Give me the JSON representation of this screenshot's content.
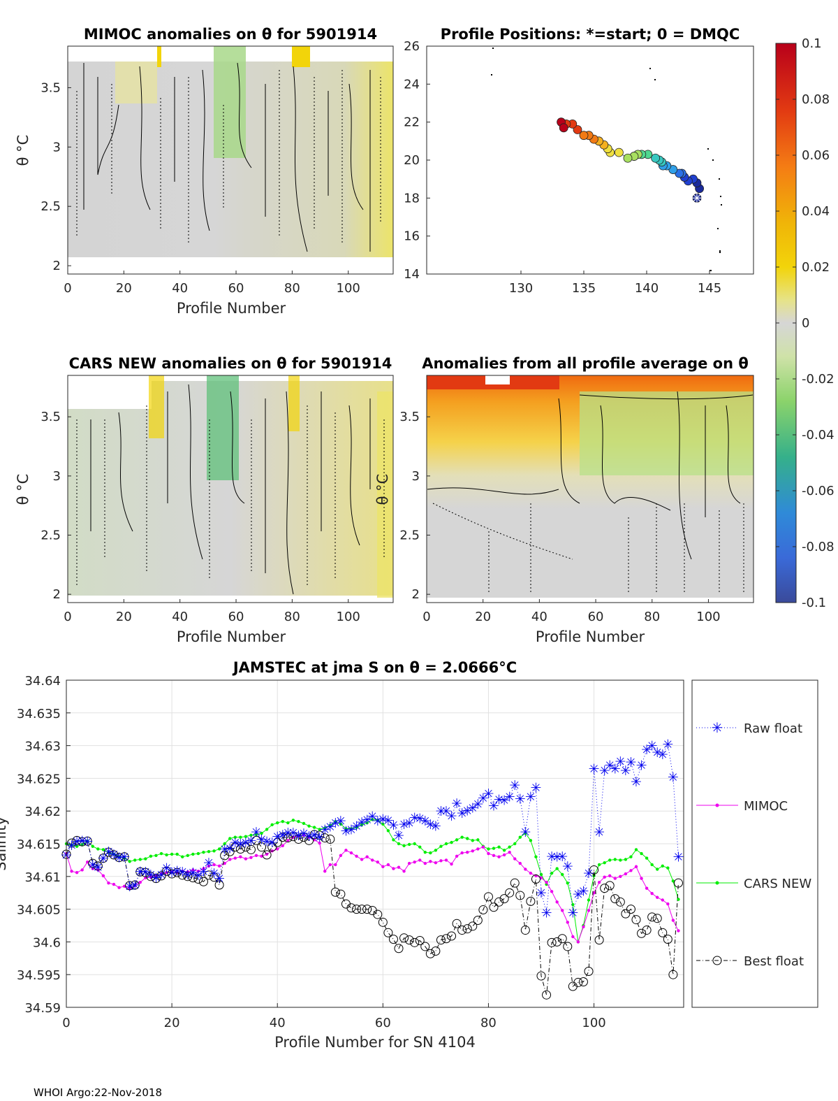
{
  "footer": "WHOI Argo:22-Nov-2018",
  "colorbar": {
    "ticks": [
      "0.1",
      "0.08",
      "0.06",
      "0.04",
      "0.02",
      "0",
      "-0.02",
      "-0.04",
      "-0.06",
      "-0.08",
      "-0.1"
    ],
    "colors": {
      "top": "#b8001a",
      "orange": "#f47c14",
      "yellow": "#f2d40a",
      "gray": "#d6d6d6",
      "green": "#8bd36b",
      "teal": "#35b08a",
      "blue": "#3a6ad8",
      "bottom": "#3a4a9a"
    }
  },
  "chart_data": [
    {
      "type": "heatmap",
      "title": "MIMOC anomalies on θ  for 5901914",
      "xlabel": "Profile Number",
      "ylabel": "θ °C",
      "xlim": [
        0,
        116
      ],
      "ylim": [
        1.93,
        3.85
      ],
      "xticks": [
        "0",
        "20",
        "40",
        "60",
        "80",
        "100"
      ],
      "yticks": [
        "2",
        "2.5",
        "3",
        "3.5"
      ]
    },
    {
      "type": "scatter",
      "title": "Profile Positions: *=start; 0 = DMQC",
      "xlim": [
        122.5,
        148.5
      ],
      "ylim": [
        14,
        26
      ],
      "xticks": [
        "130",
        "135",
        "140",
        "145"
      ],
      "yticks": [
        "14",
        "16",
        "18",
        "20",
        "22",
        "24",
        "26"
      ],
      "track": [
        [
          144,
          18
        ],
        [
          144.2,
          18.5
        ],
        [
          144,
          18.8
        ],
        [
          143.7,
          19
        ],
        [
          143.3,
          18.9
        ],
        [
          143,
          19.1
        ],
        [
          142.8,
          19.3
        ],
        [
          142.6,
          19.3
        ],
        [
          142.1,
          19.5
        ],
        [
          141.6,
          19.7
        ],
        [
          141.3,
          19.7
        ],
        [
          141.2,
          19.9
        ],
        [
          141,
          20
        ],
        [
          140.7,
          20.1
        ],
        [
          140.1,
          20.3
        ],
        [
          139.6,
          20.3
        ],
        [
          139.3,
          20.3
        ],
        [
          139,
          20.2
        ],
        [
          138.5,
          20.1
        ],
        [
          137.8,
          20.4
        ],
        [
          137.1,
          20.4
        ],
        [
          136.9,
          20.6
        ],
        [
          136.6,
          20.8
        ],
        [
          136.2,
          21
        ],
        [
          135.8,
          21.1
        ],
        [
          135.4,
          21.3
        ],
        [
          135,
          21.3
        ],
        [
          134.5,
          21.6
        ],
        [
          134.1,
          21.9
        ],
        [
          133.6,
          21.9
        ],
        [
          133.2,
          22.0
        ],
        [
          133.4,
          21.7
        ]
      ]
    },
    {
      "type": "heatmap",
      "title": "CARS NEW anomalies on θ for 5901914",
      "xlabel": "Profile Number",
      "ylabel": "θ °C",
      "xlim": [
        0,
        116
      ],
      "ylim": [
        1.93,
        3.85
      ],
      "xticks": [
        "0",
        "20",
        "40",
        "60",
        "80",
        "100"
      ],
      "yticks": [
        "2",
        "2.5",
        "3",
        "3.5"
      ]
    },
    {
      "type": "heatmap",
      "title": "Anomalies from all profile average on θ",
      "xlabel": "Profile Number",
      "ylabel": "θ °C",
      "xlim": [
        0,
        116
      ],
      "ylim": [
        1.93,
        3.85
      ],
      "xticks": [
        "0",
        "20",
        "40",
        "60",
        "80",
        "100"
      ],
      "yticks": [
        "2",
        "2.5",
        "3",
        "3.5"
      ]
    },
    {
      "type": "line",
      "title": "JAMSTEC at jma S on θ = 2.0666°C",
      "xlabel": "Profile Number for SN 4104",
      "ylabel": "Salinity",
      "xlim": [
        0,
        117
      ],
      "ylim": [
        34.59,
        34.64
      ],
      "xticks": [
        "0",
        "20",
        "40",
        "60",
        "80",
        "100"
      ],
      "yticks": [
        "34.59",
        "34.595",
        "34.6",
        "34.605",
        "34.61",
        "34.615",
        "34.62",
        "34.625",
        "34.63",
        "34.635",
        "34.64"
      ],
      "x": [
        0,
        1,
        2,
        3,
        4,
        5,
        6,
        7,
        8,
        9,
        10,
        11,
        12,
        13,
        14,
        15,
        16,
        17,
        18,
        19,
        20,
        21,
        22,
        23,
        24,
        25,
        26,
        27,
        28,
        29,
        30,
        31,
        32,
        33,
        34,
        35,
        36,
        37,
        38,
        39,
        40,
        41,
        42,
        43,
        44,
        45,
        46,
        47,
        48,
        49,
        50,
        51,
        52,
        53,
        54,
        55,
        56,
        57,
        58,
        59,
        60,
        61,
        62,
        63,
        64,
        65,
        66,
        67,
        68,
        69,
        70,
        71,
        72,
        73,
        74,
        75,
        76,
        77,
        78,
        79,
        80,
        81,
        82,
        83,
        84,
        85,
        86,
        87,
        88,
        89,
        90,
        91,
        92,
        93,
        94,
        95,
        96,
        97,
        98,
        99,
        100,
        101,
        102,
        103,
        104,
        105,
        106,
        107,
        108,
        109,
        110,
        111,
        112,
        113,
        114,
        115,
        116
      ],
      "series": [
        {
          "name": "Raw float",
          "values": [
            34.6133,
            34.6148,
            34.6154,
            34.6155,
            34.6154,
            34.6118,
            34.6114,
            34.6128,
            34.6138,
            34.6134,
            34.6129,
            34.613,
            34.6085,
            34.6087,
            34.6108,
            34.6107,
            34.6103,
            34.6098,
            34.6103,
            34.6113,
            34.6106,
            34.6109,
            34.6107,
            34.6103,
            34.6106,
            34.6102,
            34.6108,
            34.6121,
            34.6105,
            34.6097,
            34.6142,
            34.6143,
            34.6152,
            34.615,
            34.6152,
            34.6155,
            34.6168,
            34.6157,
            34.6154,
            34.6152,
            34.6161,
            34.6164,
            34.6167,
            34.6167,
            34.6163,
            34.6166,
            34.6162,
            34.6164,
            34.616,
            34.6172,
            34.6176,
            34.6182,
            34.6185,
            34.617,
            34.6172,
            34.6177,
            34.6183,
            34.6187,
            34.6192,
            34.6185,
            34.6188,
            34.6186,
            34.6179,
            34.6163,
            34.618,
            34.6182,
            34.619,
            34.6189,
            34.6185,
            34.618,
            34.6177,
            34.62,
            34.62,
            34.6193,
            34.6212,
            34.6197,
            34.6201,
            34.6205,
            34.6211,
            34.622,
            34.6227,
            34.6208,
            34.6218,
            34.6217,
            34.6222,
            34.624,
            34.6219,
            34.6168,
            34.6222,
            34.6236,
            34.6075,
            34.6045,
            34.6131,
            34.613,
            34.6131,
            34.6116,
            34.6045,
            34.6073,
            34.6078,
            34.6105,
            34.6265,
            34.6168,
            34.6262,
            34.627,
            34.6265,
            34.6276,
            34.6262,
            34.6275,
            34.6245,
            34.627,
            34.6294,
            34.63,
            34.629,
            34.6287,
            34.6302,
            34.6252,
            34.613
          ]
        },
        {
          "name": "MIMOC",
          "values": [
            34.6135,
            34.6108,
            34.6106,
            34.611,
            34.6122,
            34.6112,
            34.611,
            34.6101,
            34.609,
            34.6088,
            34.6083,
            34.6085,
            34.6082,
            34.6086,
            34.6091,
            34.6098,
            34.6099,
            34.6101,
            34.6104,
            34.6106,
            34.6107,
            34.6106,
            34.6108,
            34.6107,
            34.611,
            34.6108,
            34.6112,
            34.6116,
            34.6118,
            34.6116,
            34.612,
            34.6126,
            34.6128,
            34.613,
            34.6127,
            34.6129,
            34.6132,
            34.6131,
            34.6134,
            34.6139,
            34.6142,
            34.6147,
            34.6155,
            34.616,
            34.6162,
            34.6163,
            34.616,
            34.6156,
            34.6151,
            34.6108,
            34.6118,
            34.6118,
            34.6132,
            34.614,
            34.6136,
            34.6131,
            34.6126,
            34.613,
            34.6125,
            34.6122,
            34.6115,
            34.6118,
            34.6112,
            34.6114,
            34.6108,
            34.612,
            34.6122,
            34.6125,
            34.612,
            34.6123,
            34.6121,
            34.6124,
            34.6125,
            34.6119,
            34.6131,
            34.6136,
            34.6137,
            34.6139,
            34.6142,
            34.6145,
            34.6135,
            34.6132,
            34.613,
            34.6133,
            34.6137,
            34.6127,
            34.612,
            34.6111,
            34.6105,
            34.6101,
            34.6098,
            34.6091,
            34.6077,
            34.6061,
            34.6048,
            34.603,
            34.6008,
            34.6,
            34.6023,
            34.6048,
            34.6075,
            34.6091,
            34.6099,
            34.6101,
            34.6097,
            34.61,
            34.6104,
            34.6109,
            34.6115,
            34.6097,
            34.6082,
            34.6074,
            34.6068,
            34.6064,
            34.6058,
            34.6033,
            34.6017
          ]
        },
        {
          "name": "CARS NEW",
          "values": [
            34.615,
            34.6148,
            34.6146,
            34.6149,
            34.6154,
            34.6146,
            34.6142,
            34.6141,
            34.6137,
            34.6134,
            34.613,
            34.6128,
            34.6123,
            34.6125,
            34.6126,
            34.6127,
            34.6131,
            34.6132,
            34.6135,
            34.6133,
            34.6134,
            34.6134,
            34.613,
            34.6132,
            34.6134,
            34.6135,
            34.6137,
            34.6138,
            34.6139,
            34.6142,
            34.615,
            34.6158,
            34.616,
            34.616,
            34.6161,
            34.6163,
            34.6164,
            34.6166,
            34.6172,
            34.6179,
            34.6182,
            34.6184,
            34.6182,
            34.6186,
            34.6184,
            34.6181,
            34.6177,
            34.6175,
            34.6172,
            34.6174,
            34.6178,
            34.6184,
            34.618,
            34.6173,
            34.6173,
            34.6175,
            34.6179,
            34.6182,
            34.6187,
            34.6186,
            34.618,
            34.617,
            34.6156,
            34.615,
            34.6147,
            34.6149,
            34.615,
            34.6145,
            34.6137,
            34.6136,
            34.614,
            34.6146,
            34.615,
            34.6152,
            34.6156,
            34.616,
            34.6158,
            34.6155,
            34.6156,
            34.6146,
            34.6142,
            34.6143,
            34.6145,
            34.614,
            34.6145,
            34.615,
            34.616,
            34.6166,
            34.6155,
            34.613,
            34.6103,
            34.6088,
            34.6105,
            34.6112,
            34.6103,
            34.609,
            34.6057,
            34.6,
            34.6025,
            34.6064,
            34.6101,
            34.6118,
            34.6121,
            34.6125,
            34.6126,
            34.6125,
            34.6126,
            34.613,
            34.6141,
            34.6135,
            34.6128,
            34.6118,
            34.6111,
            34.6116,
            34.6113,
            34.6093,
            34.6065
          ]
        },
        {
          "name": "Best float",
          "values": [
            34.6134,
            34.6151,
            34.6155,
            34.6153,
            34.6154,
            34.612,
            34.6116,
            34.6128,
            34.6137,
            34.6133,
            34.6129,
            34.613,
            34.6086,
            34.6087,
            34.6107,
            34.6106,
            34.61,
            34.6097,
            34.6101,
            34.6108,
            34.6104,
            34.6106,
            34.6102,
            34.61,
            34.6098,
            34.6096,
            34.6092,
            34.6102,
            34.6099,
            34.6087,
            34.6132,
            34.6138,
            34.6145,
            34.6142,
            34.6145,
            34.6141,
            34.6155,
            34.6145,
            34.6133,
            34.6145,
            34.6152,
            34.616,
            34.6159,
            34.6161,
            34.6157,
            34.616,
            34.6155,
            34.6164,
            34.6163,
            34.6159,
            34.6157,
            34.6076,
            34.6073,
            34.6058,
            34.6052,
            34.605,
            34.605,
            34.605,
            34.6048,
            34.6042,
            34.603,
            34.6014,
            34.6004,
            34.599,
            34.6006,
            34.6003,
            34.5999,
            34.6002,
            34.5993,
            34.5982,
            34.5986,
            34.6003,
            34.6005,
            34.6009,
            34.6028,
            34.6018,
            34.602,
            34.6024,
            34.6033,
            34.6049,
            34.6069,
            34.6053,
            34.6061,
            34.6066,
            34.6075,
            34.609,
            34.6071,
            34.6018,
            34.6062,
            34.6096,
            34.5948,
            34.5919,
            34.5999,
            34.6,
            34.6005,
            34.5993,
            34.5932,
            34.5938,
            34.5939,
            34.5955,
            34.611,
            34.6003,
            34.6082,
            34.6086,
            34.6066,
            34.6061,
            34.6043,
            34.605,
            34.6034,
            34.6013,
            34.6018,
            34.6038,
            34.6036,
            34.6014,
            34.6004,
            34.595,
            34.609
          ]
        }
      ]
    }
  ]
}
